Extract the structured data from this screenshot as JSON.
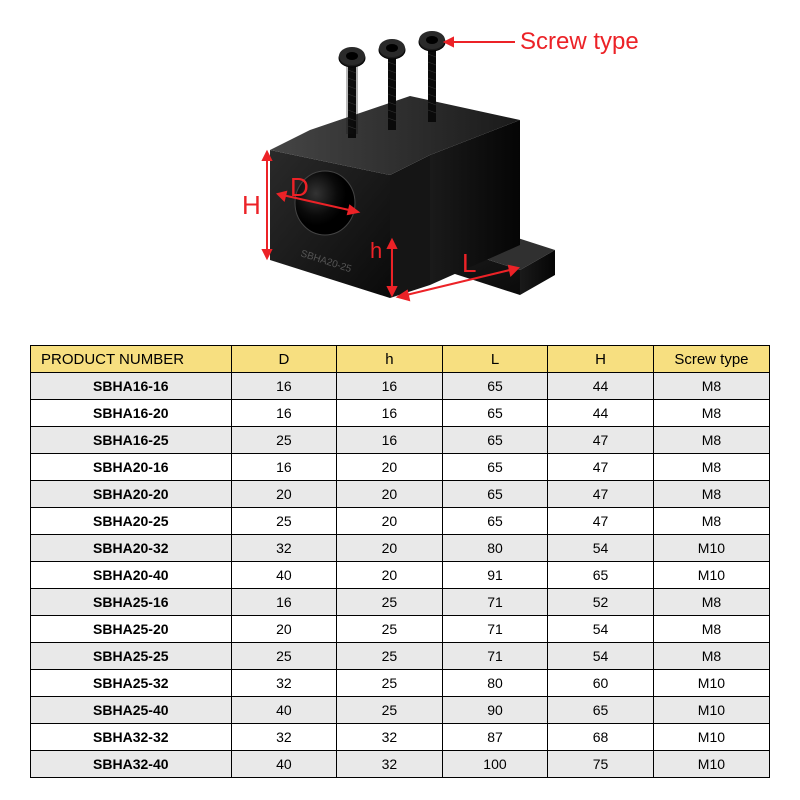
{
  "diagram": {
    "screw_type_label": "Screw type",
    "H_label": "H",
    "D_label": "D",
    "h_label": "h",
    "L_label": "L",
    "label_color": "#ec2227",
    "arrow_color": "#ec2227",
    "part_color": "#1a1a1a",
    "block_label": "SBHA20-25"
  },
  "table": {
    "header_bg": "#f7df80",
    "row_alt_bg": "#e9e9e9",
    "row_bg": "#ffffff",
    "border_color": "#000000",
    "columns": [
      "PRODUCT NUMBER",
      "D",
      "h",
      "L",
      "H",
      "Screw type"
    ],
    "rows": [
      [
        "SBHA16-16",
        "16",
        "16",
        "65",
        "44",
        "M8"
      ],
      [
        "SBHA16-20",
        "16",
        "16",
        "65",
        "44",
        "M8"
      ],
      [
        "SBHA16-25",
        "25",
        "16",
        "65",
        "47",
        "M8"
      ],
      [
        "SBHA20-16",
        "16",
        "20",
        "65",
        "47",
        "M8"
      ],
      [
        "SBHA20-20",
        "20",
        "20",
        "65",
        "47",
        "M8"
      ],
      [
        "SBHA20-25",
        "25",
        "20",
        "65",
        "47",
        "M8"
      ],
      [
        "SBHA20-32",
        "32",
        "20",
        "80",
        "54",
        "M10"
      ],
      [
        "SBHA20-40",
        "40",
        "20",
        "91",
        "65",
        "M10"
      ],
      [
        "SBHA25-16",
        "16",
        "25",
        "71",
        "52",
        "M8"
      ],
      [
        "SBHA25-20",
        "20",
        "25",
        "71",
        "54",
        "M8"
      ],
      [
        "SBHA25-25",
        "25",
        "25",
        "71",
        "54",
        "M8"
      ],
      [
        "SBHA25-32",
        "32",
        "25",
        "80",
        "60",
        "M10"
      ],
      [
        "SBHA25-40",
        "40",
        "25",
        "90",
        "65",
        "M10"
      ],
      [
        "SBHA32-32",
        "32",
        "32",
        "87",
        "68",
        "M10"
      ],
      [
        "SBHA32-40",
        "40",
        "32",
        "100",
        "75",
        "M10"
      ]
    ]
  }
}
